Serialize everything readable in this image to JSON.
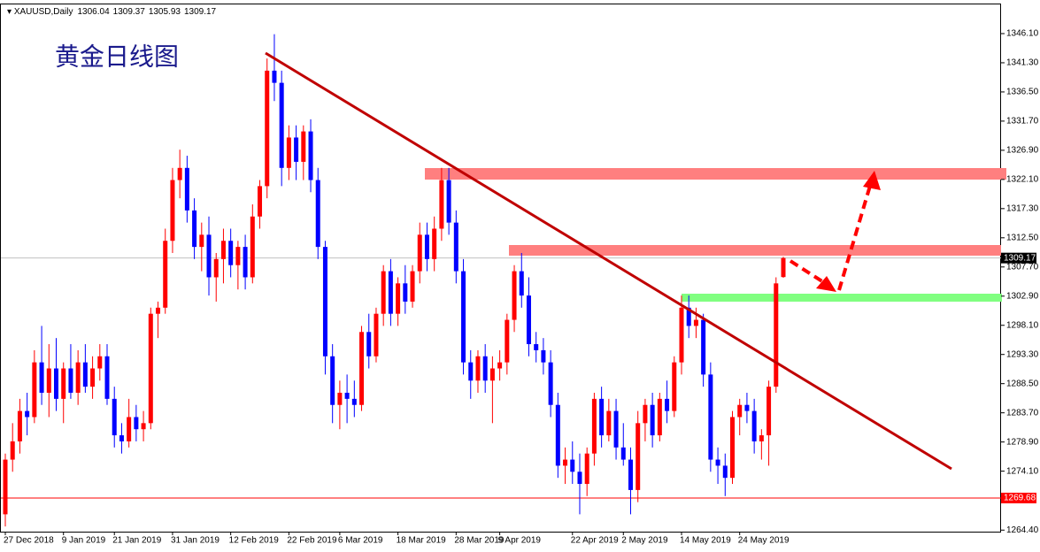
{
  "chart_data": {
    "type": "candlestick",
    "title": "黄金日线图",
    "symbol": "XAUUSD,Daily",
    "up_color": "#ff0000",
    "down_color": "#0000ff",
    "categories": [
      "27 Dec 2018",
      null,
      null,
      null,
      null,
      null,
      null,
      null,
      "9 Jan 2019",
      null,
      null,
      null,
      null,
      null,
      null,
      "21 Jan 2019",
      null,
      null,
      null,
      null,
      null,
      null,
      null,
      "31 Jan 2019",
      null,
      null,
      null,
      null,
      null,
      null,
      null,
      "12 Feb 2019",
      null,
      null,
      null,
      null,
      null,
      null,
      null,
      "22 Feb 2019",
      null,
      null,
      null,
      null,
      null,
      null,
      "6 Mar 2019",
      null,
      null,
      null,
      null,
      null,
      null,
      null,
      "18 Mar 2019",
      null,
      null,
      null,
      null,
      null,
      null,
      null,
      "28 Mar 2019",
      null,
      null,
      null,
      null,
      null,
      "9 Apr 2019",
      null,
      null,
      null,
      null,
      null,
      null,
      null,
      null,
      null,
      "22 Apr 2019",
      null,
      null,
      null,
      null,
      null,
      null,
      "2 May 2019",
      null,
      null,
      null,
      null,
      null,
      null,
      null,
      "14 May 2019",
      null,
      null,
      null,
      null,
      null,
      null,
      null,
      "24 May 2019",
      null,
      null,
      null,
      null,
      null,
      null
    ],
    "open": [
      1267,
      1276,
      1279,
      1284,
      1283,
      1292,
      1287,
      1291,
      1286,
      1291,
      1287,
      1292,
      1288,
      1291,
      1293,
      1286,
      1280,
      1279,
      1283,
      1281,
      1282,
      1300,
      1301,
      1312,
      1322,
      1324,
      1317,
      1311,
      1313,
      1306,
      1309,
      1312,
      1308,
      1311,
      1306,
      1316,
      1321,
      1340,
      1338,
      1324,
      1329,
      1325,
      1330,
      1322,
      1311,
      1293,
      1285,
      1287,
      1286,
      1285,
      1297,
      1293,
      1300,
      1307,
      1300,
      1305,
      1302,
      1307,
      1313,
      1309,
      1314,
      1322,
      1315,
      1307,
      1292,
      1289,
      1293,
      1289,
      1291,
      1292,
      1299,
      1307,
      1303,
      1295,
      1294,
      1292,
      1285,
      1275,
      1276,
      1274,
      1272,
      1277,
      1286,
      1280,
      1284,
      1278,
      1276,
      1271,
      1282,
      1285,
      1280,
      1286,
      1284,
      1292,
      1301,
      1298,
      1299,
      1290,
      1276,
      1275,
      1273,
      1283,
      1285,
      1284,
      1279,
      1280,
      1288,
      1306.04
    ],
    "high": [
      1277,
      1282,
      1286,
      1287,
      1294,
      1298,
      1295,
      1296,
      1292,
      1295,
      1294,
      1295,
      1293,
      1295,
      1295,
      1288,
      1282,
      1286,
      1285,
      1284,
      1301,
      1302,
      1314,
      1324,
      1327,
      1326,
      1319,
      1315,
      1316,
      1310,
      1314,
      1314,
      1312,
      1313,
      1318,
      1322,
      1342,
      1346,
      1340,
      1331,
      1331,
      1331,
      1332,
      1324,
      1312,
      1295,
      1289,
      1290,
      1289,
      1298,
      1300,
      1301,
      1308,
      1309,
      1306,
      1308,
      1308,
      1315,
      1315,
      1316,
      1324,
      1324,
      1317,
      1309,
      1294,
      1294,
      1295,
      1293,
      1294,
      1300,
      1308,
      1310,
      1306,
      1297,
      1296,
      1294,
      1287,
      1278,
      1279,
      1277,
      1278,
      1287,
      1288,
      1286,
      1286,
      1282,
      1278,
      1284,
      1286,
      1287,
      1287,
      1289,
      1293,
      1303,
      1303,
      1301,
      1300,
      1292,
      1278,
      1277,
      1284,
      1286,
      1287,
      1286,
      1281,
      1289,
      1306,
      1309.37
    ],
    "low": [
      1265,
      1274,
      1277,
      1280,
      1282,
      1285,
      1283,
      1284,
      1282,
      1286,
      1285,
      1287,
      1286,
      1289,
      1285,
      1278,
      1277,
      1278,
      1279,
      1279,
      1281,
      1296,
      1300,
      1310,
      1319,
      1315,
      1309,
      1307,
      1303,
      1302,
      1305,
      1306,
      1304,
      1304,
      1305,
      1314,
      1319,
      1335,
      1321,
      1322,
      1322,
      1322,
      1320,
      1309,
      1290,
      1282,
      1281,
      1282,
      1283,
      1284,
      1291,
      1292,
      1298,
      1298,
      1298,
      1300,
      1301,
      1305,
      1307,
      1307,
      1312,
      1313,
      1305,
      1290,
      1286,
      1287,
      1287,
      1282,
      1289,
      1290,
      1297,
      1301,
      1293,
      1292,
      1290,
      1283,
      1273,
      1272,
      1272,
      1267,
      1270,
      1275,
      1278,
      1279,
      1276,
      1275,
      1267,
      1269,
      1279,
      1278,
      1279,
      1282,
      1283,
      1290,
      1296,
      1296,
      1288,
      1274,
      1272,
      1270,
      1272,
      1280,
      1282,
      1277,
      1276,
      1275,
      1287,
      1305.93
    ],
    "close": [
      1276,
      1279,
      1284,
      1283,
      1292,
      1287,
      1291,
      1286,
      1291,
      1287,
      1292,
      1288,
      1291,
      1293,
      1286,
      1280,
      1279,
      1283,
      1281,
      1282,
      1300,
      1301,
      1312,
      1322,
      1324,
      1317,
      1311,
      1313,
      1306,
      1309,
      1312,
      1308,
      1311,
      1306,
      1316,
      1321,
      1340,
      1338,
      1324,
      1329,
      1325,
      1330,
      1322,
      1311,
      1293,
      1285,
      1287,
      1286,
      1285,
      1297,
      1293,
      1300,
      1307,
      1300,
      1305,
      1302,
      1307,
      1313,
      1309,
      1314,
      1322,
      1315,
      1307,
      1292,
      1289,
      1293,
      1289,
      1291,
      1292,
      1299,
      1307,
      1303,
      1295,
      1294,
      1292,
      1285,
      1275,
      1276,
      1274,
      1272,
      1277,
      1286,
      1280,
      1284,
      1278,
      1276,
      1271,
      1282,
      1285,
      1280,
      1286,
      1284,
      1292,
      1301,
      1298,
      1299,
      1290,
      1276,
      1275,
      1273,
      1283,
      1285,
      1284,
      1279,
      1280,
      1288,
      1305,
      1309.17
    ],
    "ylim": [
      1264.0,
      1350.9
    ],
    "yticks": [
      {
        "value": 1346.1,
        "label": "1346.10"
      },
      {
        "value": 1341.3,
        "label": "1341.30"
      },
      {
        "value": 1336.5,
        "label": "1336.50"
      },
      {
        "value": 1331.7,
        "label": "1331.70"
      },
      {
        "value": 1326.9,
        "label": "1326.90"
      },
      {
        "value": 1322.1,
        "label": "1322.10"
      },
      {
        "value": 1317.3,
        "label": "1317.30"
      },
      {
        "value": 1312.5,
        "label": "1312.50"
      },
      {
        "value": 1307.7,
        "label": "1307.70"
      },
      {
        "value": 1302.9,
        "label": "1302.90"
      },
      {
        "value": 1298.1,
        "label": "1298.10"
      },
      {
        "value": 1293.3,
        "label": "1293.30"
      },
      {
        "value": 1288.5,
        "label": "1288.50"
      },
      {
        "value": 1283.7,
        "label": "1283.70"
      },
      {
        "value": 1278.9,
        "label": "1278.90"
      },
      {
        "value": 1274.1,
        "label": "1274.10"
      },
      {
        "value": 1264.4,
        "label": "1264.40"
      }
    ],
    "price_lines": [
      {
        "value": 1309.17,
        "color": "#c0c0c0",
        "label_bg": "#000000"
      },
      {
        "value": 1269.68,
        "color": "#ff0000",
        "label_bg": "#ff0000"
      }
    ]
  }
}
